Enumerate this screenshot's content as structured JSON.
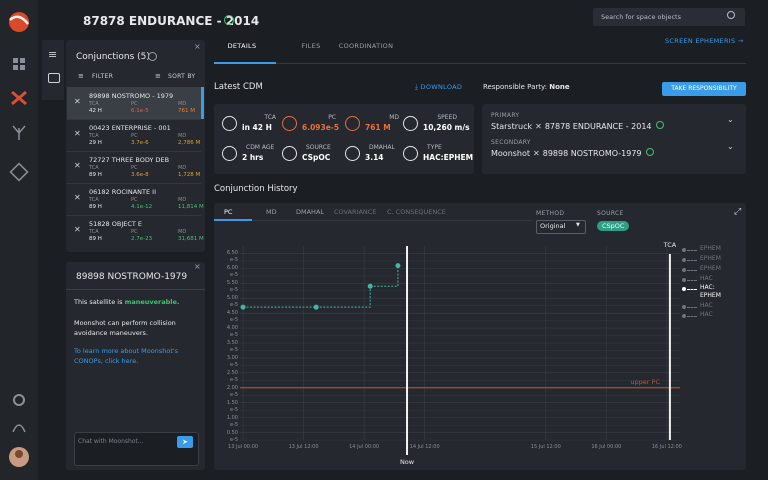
{
  "header": {
    "title": "87878 ENDURANCE - 2014",
    "search_placeholder": "Search for space objects"
  },
  "tabs": [
    "DETAILS",
    "FILES",
    "COORDINATION"
  ],
  "active_tab": 0,
  "screen_ephemeris": "SCREEN EPHEMERIS",
  "conjunctions": {
    "title": "Conjunctions (5)",
    "filter": "FILTER",
    "sort": "SORT BY",
    "selected": 0,
    "items": [
      {
        "name": "89898 NOSTROMO - 1979",
        "labels": [
          "TCA",
          "PC",
          "MD"
        ],
        "values": [
          "42 H",
          "6.1e-5",
          "761 M"
        ],
        "colors": [
          "#e6e8eb",
          "#e8603c",
          "#e8843c"
        ]
      },
      {
        "name": "00423 ENTERPRISE - 001",
        "labels": [
          "TCA",
          "PC",
          "MD"
        ],
        "values": [
          "29 H",
          "3.7e-6",
          "2,786 M"
        ],
        "colors": [
          "#e6e8eb",
          "#e0a030",
          "#e0a030"
        ]
      },
      {
        "name": "72727 THREE BODY DEB",
        "labels": [
          "TCA",
          "PC",
          "MD"
        ],
        "values": [
          "89 H",
          "3.6e-8",
          "1,728 M"
        ],
        "colors": [
          "#e6e8eb",
          "#e0a030",
          "#e0a030"
        ]
      },
      {
        "name": "06182 ROCINANTE II",
        "labels": [
          "TCA",
          "PC",
          "MD"
        ],
        "values": [
          "89 H",
          "4.1e-12",
          "11,814 M"
        ],
        "colors": [
          "#e6e8eb",
          "#3ec46d",
          "#3ec46d"
        ]
      },
      {
        "name": "51828 OBJECT E",
        "labels": [
          "TCA",
          "PC",
          "MD"
        ],
        "values": [
          "89 H",
          "2.7e-23",
          "31,681 M"
        ],
        "colors": [
          "#e6e8eb",
          "#3ec46d",
          "#3ec46d"
        ]
      }
    ]
  },
  "chat": {
    "title": "89898 NOSTROMO-1979",
    "status_prefix": "This satellite is",
    "status": "maneuverable.",
    "body": "Moonshot can perform collision avoidance maneuvers.",
    "link": "To learn more about Moonshot's CONOPs, click here.",
    "placeholder": "Chat with Moonshot..."
  },
  "cdm": {
    "title": "Latest CDM",
    "download": "DOWNLOAD",
    "stats": [
      {
        "label": "TCA",
        "value": "in 42 H",
        "color": "#ffffff"
      },
      {
        "label": "PC",
        "value": "6.093e-5",
        "color": "#e8703c"
      },
      {
        "label": "MD",
        "value": "761 M",
        "color": "#e8703c"
      },
      {
        "label": "SPEED",
        "value": "10,260 m/s",
        "color": "#ffffff"
      },
      {
        "label": "CDM AGE",
        "value": "2 hrs",
        "color": "#ffffff"
      },
      {
        "label": "SOURCE",
        "value": "CSpOC",
        "color": "#ffffff"
      },
      {
        "label": "DMAHAL",
        "value": "3.14",
        "color": "#ffffff"
      },
      {
        "label": "TYPE",
        "value": "HAC:EPHEM",
        "color": "#ffffff"
      }
    ]
  },
  "responsibility": {
    "label": "Responsible Party:",
    "value": "None",
    "button": "TAKE RESPONSIBILITY"
  },
  "parties": [
    {
      "role": "PRIMARY",
      "operator": "Starstruck",
      "object": "87878 ENDURANCE - 2014"
    },
    {
      "role": "SECONDARY",
      "operator": "Moonshot",
      "object": "89898 NOSTROMO-1979"
    }
  ],
  "history": {
    "title": "Conjunction History",
    "tabs": [
      "PC",
      "MD",
      "DMAHAL",
      "COVARIANCE",
      "C. CONSEQUENCE"
    ],
    "active_tab": 0,
    "method_label": "METHOD",
    "method": "Original",
    "source_label": "SOURCE",
    "source": "CSpOC",
    "legend": [
      "EPHEM",
      "EPHEM",
      "EPHEM",
      "HAC",
      "HAC: EPHEM",
      "HAC",
      "HAC"
    ],
    "legend_active": 4
  },
  "chart_data": {
    "type": "line",
    "x": [
      0,
      14.5,
      25.2,
      30.7
    ],
    "series": [
      {
        "values": [
          4.7e-05,
          4.7e-05,
          5.4e-05,
          6.093e-05
        ],
        "color": "#3fb8a4"
      }
    ],
    "step": true,
    "xlim": [
      -0.6,
      86.6
    ],
    "xticks": [
      {
        "value": 0,
        "label": "13 Jul 00:00"
      },
      {
        "value": 12,
        "label": "13 Jul 12:00"
      },
      {
        "value": 24,
        "label": "14 Jul 00:00"
      },
      {
        "value": 36,
        "label": "14 Jul 12:00"
      },
      {
        "value": 60,
        "label": "15 Jul 12:00"
      },
      {
        "value": 72,
        "label": "16 Jul 00:00"
      },
      {
        "value": 84,
        "label": "16 Jul 12:00"
      }
    ],
    "ylim": [
      2.5e-06,
      6.75e-05
    ],
    "yticks": [
      {
        "value": 6.5e-05,
        "label": "6.50 e-5"
      },
      {
        "value": 6e-05,
        "label": "6.00 e-5"
      },
      {
        "value": 5.5e-05,
        "label": "5.50 e-5"
      },
      {
        "value": 5e-05,
        "label": "5.00 e-5"
      },
      {
        "value": 4.5e-05,
        "label": "4.50 e-5"
      },
      {
        "value": 4e-05,
        "label": "4.00 e-5"
      },
      {
        "value": 3.5e-05,
        "label": "3.50 e-5"
      },
      {
        "value": 3e-05,
        "label": "3.00 e-5"
      },
      {
        "value": 2.5e-05,
        "label": "2.50 e-5"
      },
      {
        "value": 2e-05,
        "label": "2.00 e-5"
      },
      {
        "value": 1.5e-05,
        "label": "1.50 e-5"
      },
      {
        "value": 1e-05,
        "label": "1.00 e-5"
      },
      {
        "value": 5e-06,
        "label": "0.50 e-5"
      }
    ],
    "grid": true,
    "annotations": [
      {
        "text": "upper PC",
        "y": 2e-05,
        "color": "#d4502c"
      }
    ],
    "markers": [
      {
        "text": "Now",
        "x": 32.5,
        "position": "bottom"
      },
      {
        "text": "TCA",
        "x": 84.6,
        "position": "top"
      }
    ]
  }
}
